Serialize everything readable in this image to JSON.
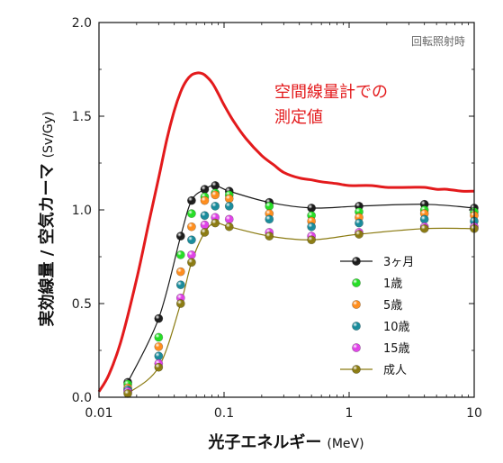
{
  "chart_data": {
    "type": "scatter",
    "note": "回転照射時",
    "xlabel": "光子エネルギー",
    "xunit": "(MeV)",
    "ylabel": "実効線量 / 空気カーマ",
    "yunit": "(Sv/Gy)",
    "xscale": "log",
    "xlim": [
      0.01,
      10
    ],
    "ylim": [
      0.0,
      2.0
    ],
    "xticks": [
      "0.01",
      "0.1",
      "1",
      "10"
    ],
    "yticks": [
      "0.0",
      "0.5",
      "1.0",
      "1.5",
      "2.0"
    ],
    "annotation": [
      "空間線量計での",
      "測定値"
    ],
    "reference_curve": {
      "color": "#e31a1c",
      "x": [
        0.01,
        0.012,
        0.015,
        0.02,
        0.025,
        0.03,
        0.035,
        0.04,
        0.045,
        0.05,
        0.055,
        0.06,
        0.065,
        0.07,
        0.08,
        0.09,
        0.1,
        0.12,
        0.15,
        0.2,
        0.25,
        0.3,
        0.4,
        0.5,
        0.6,
        0.8,
        1.0,
        1.5,
        2.0,
        3.0,
        4.0,
        5.0,
        6.0,
        8.0,
        10.0
      ],
      "y": [
        0.03,
        0.12,
        0.3,
        0.63,
        0.93,
        1.17,
        1.38,
        1.53,
        1.63,
        1.69,
        1.72,
        1.73,
        1.73,
        1.72,
        1.68,
        1.62,
        1.56,
        1.47,
        1.38,
        1.29,
        1.24,
        1.2,
        1.17,
        1.16,
        1.15,
        1.14,
        1.13,
        1.13,
        1.12,
        1.12,
        1.12,
        1.11,
        1.11,
        1.1,
        1.1
      ]
    },
    "x": [
      0.017,
      0.03,
      0.045,
      0.055,
      0.07,
      0.085,
      0.11,
      0.23,
      0.5,
      1.2,
      4.0,
      10.0
    ],
    "series": [
      {
        "name": "3ヶ月",
        "color": "#1a1a1a",
        "line": true,
        "values": [
          0.08,
          0.42,
          0.86,
          1.05,
          1.11,
          1.13,
          1.1,
          1.04,
          1.01,
          1.02,
          1.03,
          1.01
        ]
      },
      {
        "name": "1歳",
        "color": "#22dd22",
        "line": false,
        "values": [
          0.07,
          0.32,
          0.76,
          0.98,
          1.07,
          1.09,
          1.08,
          1.02,
          0.97,
          0.99,
          1.0,
          0.99
        ]
      },
      {
        "name": "5歳",
        "color": "#ff8c1a",
        "line": false,
        "values": [
          0.05,
          0.27,
          0.67,
          0.91,
          1.05,
          1.08,
          1.06,
          0.98,
          0.94,
          0.96,
          0.98,
          0.97
        ]
      },
      {
        "name": "10歳",
        "color": "#168a9a",
        "line": false,
        "values": [
          0.04,
          0.22,
          0.6,
          0.84,
          0.97,
          1.02,
          1.02,
          0.95,
          0.91,
          0.93,
          0.95,
          0.94
        ]
      },
      {
        "name": "15歳",
        "color": "#e040e8",
        "line": false,
        "values": [
          0.03,
          0.18,
          0.53,
          0.76,
          0.92,
          0.96,
          0.95,
          0.88,
          0.86,
          0.88,
          0.91,
          0.91
        ]
      },
      {
        "name": "成人",
        "color": "#8a7a10",
        "line": true,
        "values": [
          0.02,
          0.16,
          0.5,
          0.72,
          0.88,
          0.93,
          0.91,
          0.86,
          0.84,
          0.87,
          0.9,
          0.9
        ]
      }
    ]
  }
}
